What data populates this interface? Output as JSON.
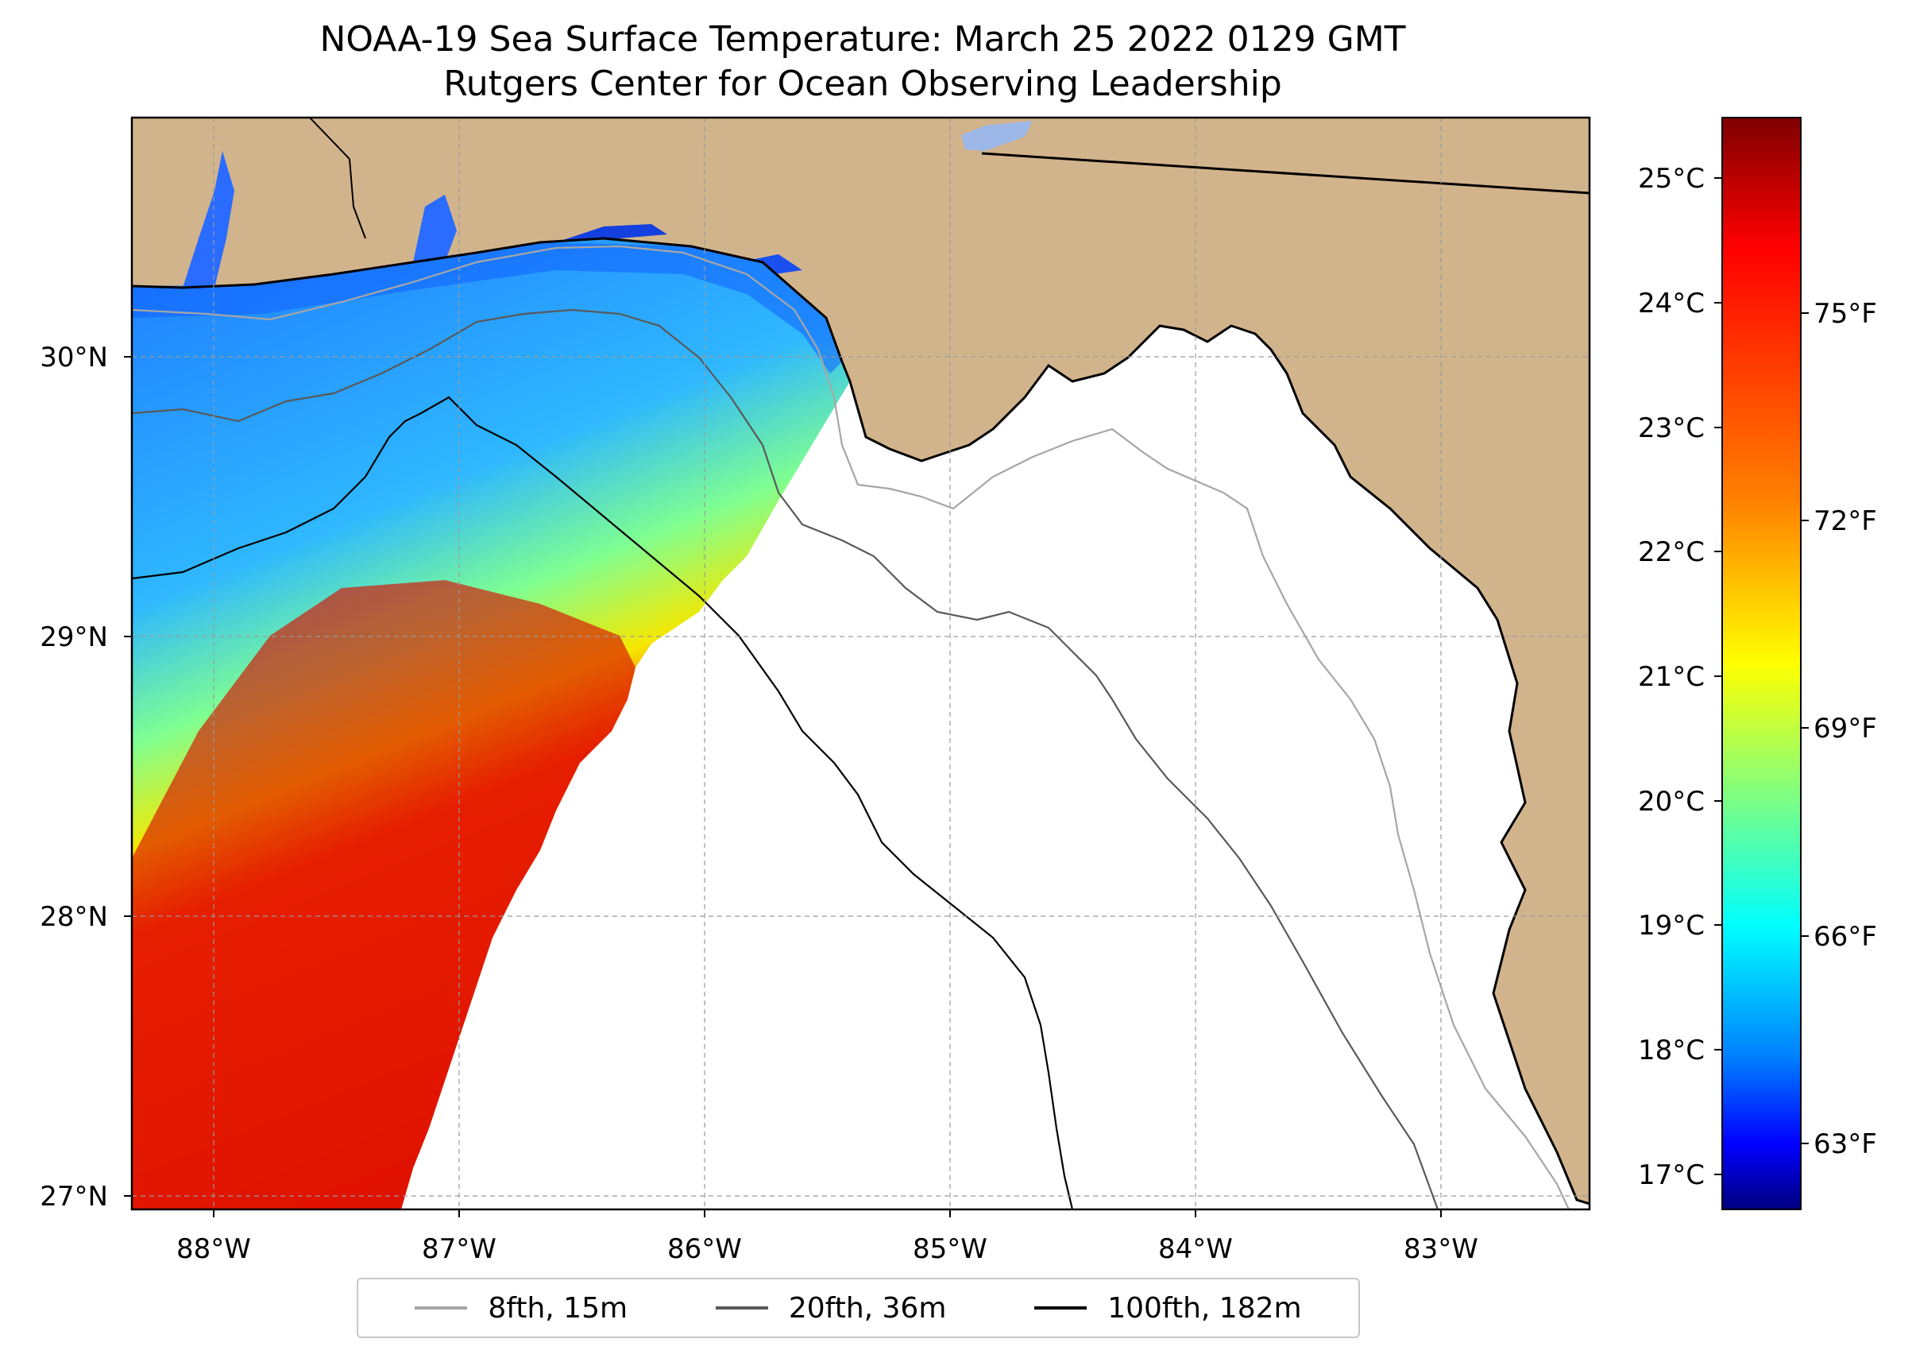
{
  "title": {
    "line1": "NOAA-19 Sea Surface Temperature: March 25 2022 0129 GMT",
    "line2": "Rutgers Center for Ocean Observing Leadership"
  },
  "map": {
    "lat_ticks": [
      "30°N",
      "29°N",
      "28°N",
      "27°N"
    ],
    "lon_ticks": [
      "88°W",
      "87°W",
      "86°W",
      "85°W",
      "84°W",
      "83°W"
    ],
    "land_color": "#d2b48c",
    "grid": "dashed"
  },
  "colorbar": {
    "colormap": "jet",
    "celsius_ticks": [
      "25°C",
      "24°C",
      "23°C",
      "22°C",
      "21°C",
      "20°C",
      "19°C",
      "18°C",
      "17°C"
    ],
    "fahrenheit_ticks": [
      "75°F",
      "72°F",
      "69°F",
      "66°F",
      "63°F"
    ],
    "colors": [
      "#7f0000",
      "#ff0000",
      "#ff8000",
      "#ffff00",
      "#80ff80",
      "#00ffff",
      "#0080ff",
      "#0000ff",
      "#00007f"
    ]
  },
  "legend": {
    "items": [
      {
        "label": "8fth, 15m",
        "color": "#a6a6a6"
      },
      {
        "label": "20fth, 36m",
        "color": "#595959"
      },
      {
        "label": "100fth, 182m",
        "color": "#000000"
      }
    ]
  }
}
